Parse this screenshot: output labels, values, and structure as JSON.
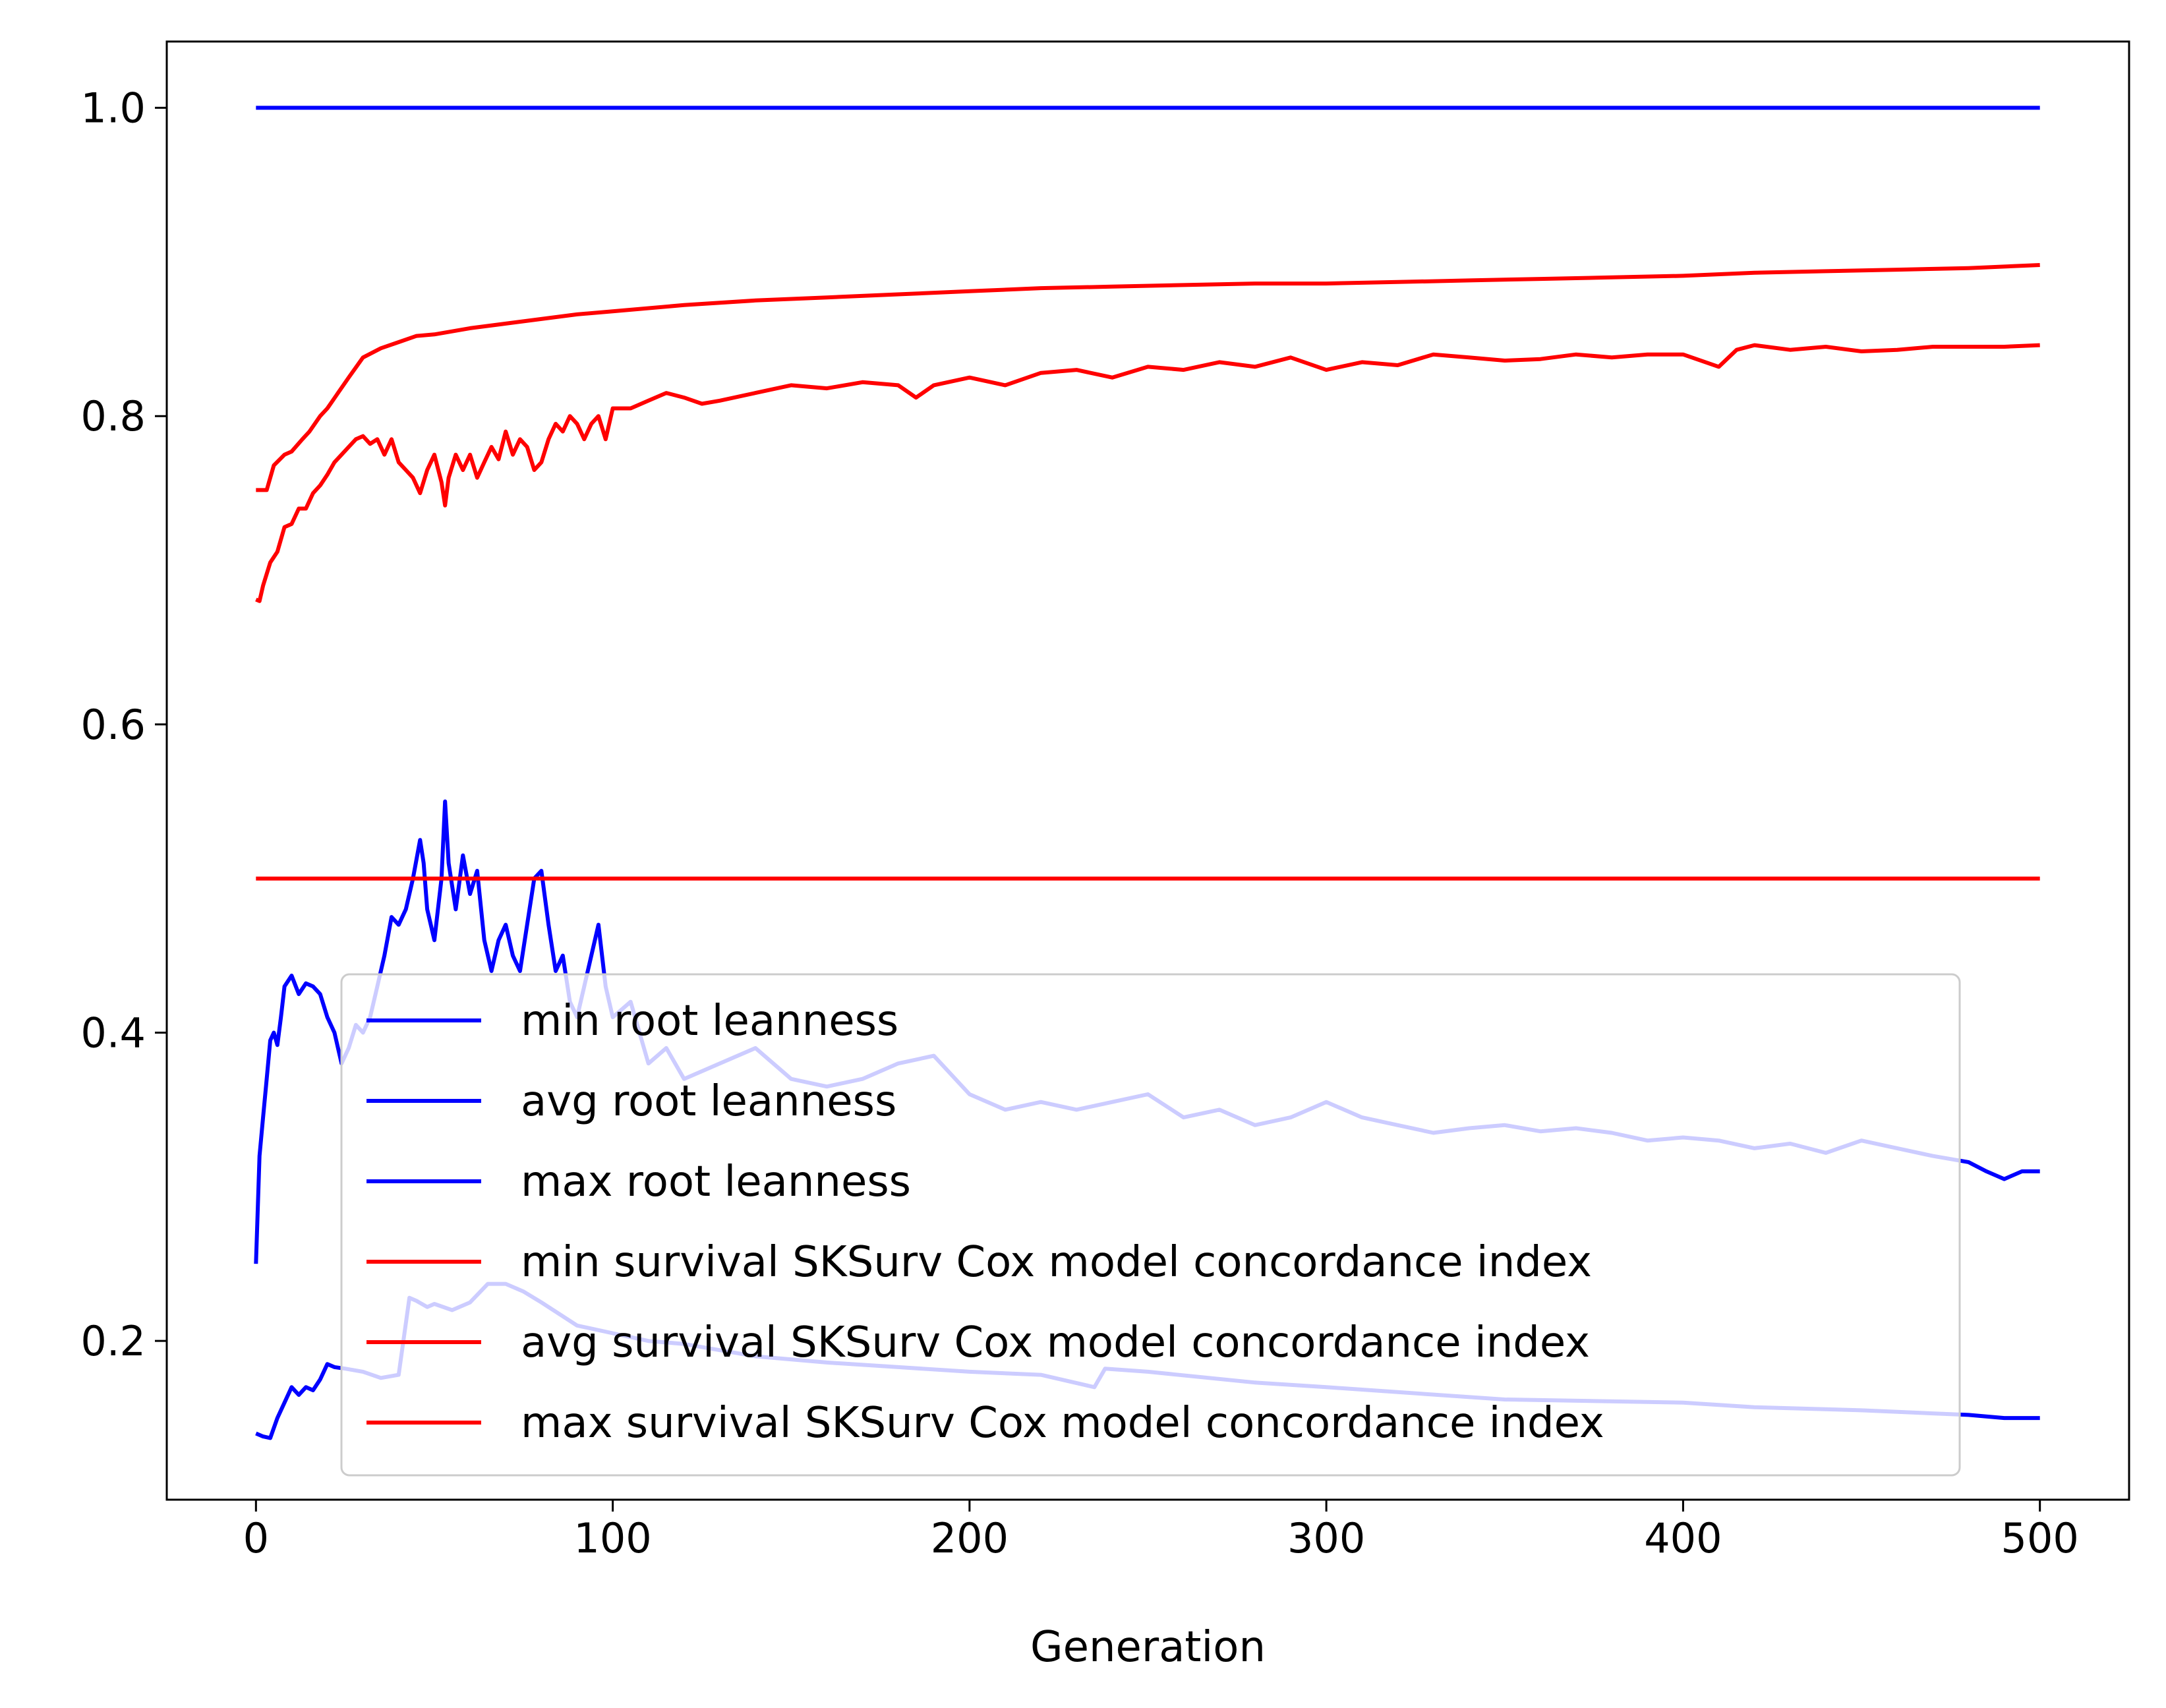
{
  "chart_data": {
    "type": "line",
    "title": "",
    "xlabel": "Generation",
    "ylabel": "",
    "xlim": [
      -25,
      525
    ],
    "ylim": [
      0.097,
      1.043
    ],
    "xticks": [
      0,
      100,
      200,
      300,
      400,
      500
    ],
    "xtick_labels": [
      "0",
      "100",
      "200",
      "300",
      "400",
      "500"
    ],
    "yticks": [
      0.2,
      0.4,
      0.6,
      0.8,
      1.0
    ],
    "ytick_labels": [
      "0.2",
      "0.4",
      "0.6",
      "0.8",
      "1.0"
    ],
    "grid": false,
    "legend": {
      "position": "lower center",
      "framed": true
    },
    "series": [
      {
        "name": "min root leanness",
        "color": "#0000ff",
        "x": [
          0,
          2,
          4,
          6,
          8,
          10,
          12,
          14,
          16,
          18,
          20,
          22,
          25,
          30,
          35,
          40,
          43,
          45,
          48,
          50,
          55,
          60,
          65,
          70,
          75,
          80,
          90,
          100,
          110,
          120,
          140,
          160,
          180,
          200,
          220,
          235,
          238,
          250,
          280,
          300,
          350,
          400,
          420,
          450,
          470,
          480,
          490,
          500
        ],
        "y": [
          0.14,
          0.138,
          0.137,
          0.15,
          0.16,
          0.17,
          0.165,
          0.17,
          0.168,
          0.175,
          0.185,
          0.183,
          0.182,
          0.18,
          0.176,
          0.178,
          0.228,
          0.226,
          0.222,
          0.224,
          0.22,
          0.225,
          0.237,
          0.237,
          0.232,
          0.225,
          0.21,
          0.205,
          0.2,
          0.198,
          0.19,
          0.186,
          0.183,
          0.18,
          0.178,
          0.17,
          0.182,
          0.18,
          0.173,
          0.17,
          0.162,
          0.16,
          0.157,
          0.155,
          0.153,
          0.152,
          0.15,
          0.15
        ]
      },
      {
        "name": "avg root leanness",
        "color": "#0000ff",
        "x": [
          0,
          1,
          2,
          3,
          4,
          5,
          6,
          7,
          8,
          10,
          12,
          14,
          16,
          18,
          20,
          22,
          24,
          26,
          28,
          30,
          32,
          34,
          36,
          38,
          40,
          42,
          44,
          46,
          47,
          48,
          50,
          52,
          53,
          54,
          56,
          58,
          60,
          62,
          64,
          66,
          68,
          70,
          72,
          74,
          76,
          78,
          80,
          82,
          84,
          86,
          88,
          90,
          92,
          94,
          96,
          98,
          100,
          105,
          110,
          115,
          120,
          130,
          140,
          150,
          160,
          170,
          180,
          190,
          200,
          210,
          220,
          230,
          240,
          250,
          260,
          270,
          280,
          290,
          300,
          310,
          320,
          330,
          340,
          350,
          360,
          370,
          380,
          390,
          400,
          410,
          420,
          430,
          440,
          450,
          460,
          470,
          480,
          485,
          490,
          495,
          500
        ],
        "y": [
          0.25,
          0.32,
          0.345,
          0.37,
          0.395,
          0.4,
          0.392,
          0.41,
          0.43,
          0.437,
          0.425,
          0.432,
          0.43,
          0.425,
          0.41,
          0.4,
          0.38,
          0.39,
          0.405,
          0.4,
          0.41,
          0.43,
          0.45,
          0.475,
          0.47,
          0.48,
          0.5,
          0.525,
          0.51,
          0.48,
          0.46,
          0.5,
          0.55,
          0.51,
          0.48,
          0.515,
          0.49,
          0.505,
          0.46,
          0.44,
          0.46,
          0.47,
          0.45,
          0.44,
          0.47,
          0.5,
          0.505,
          0.47,
          0.44,
          0.45,
          0.42,
          0.41,
          0.43,
          0.45,
          0.47,
          0.43,
          0.41,
          0.42,
          0.38,
          0.39,
          0.37,
          0.38,
          0.39,
          0.37,
          0.365,
          0.37,
          0.38,
          0.385,
          0.36,
          0.35,
          0.355,
          0.35,
          0.355,
          0.36,
          0.345,
          0.35,
          0.34,
          0.345,
          0.355,
          0.345,
          0.34,
          0.335,
          0.338,
          0.34,
          0.336,
          0.338,
          0.335,
          0.33,
          0.332,
          0.33,
          0.325,
          0.328,
          0.322,
          0.33,
          0.325,
          0.32,
          0.316,
          0.31,
          0.305,
          0.31,
          0.31
        ]
      },
      {
        "name": "max root leanness",
        "color": "#0000ff",
        "x": [
          0,
          500
        ],
        "y": [
          1.0,
          1.0
        ]
      },
      {
        "name": "min survival SKSurv Cox model concordance index",
        "color": "#ff0000",
        "x": [
          0,
          500
        ],
        "y": [
          0.5,
          0.5
        ]
      },
      {
        "name": "avg survival SKSurv Cox model concordance index",
        "color": "#ff0000",
        "x": [
          0,
          1,
          2,
          4,
          6,
          8,
          10,
          12,
          14,
          16,
          18,
          20,
          22,
          24,
          26,
          28,
          30,
          32,
          34,
          36,
          38,
          40,
          42,
          44,
          46,
          48,
          50,
          52,
          53,
          54,
          56,
          58,
          60,
          62,
          64,
          66,
          68,
          70,
          72,
          74,
          76,
          78,
          80,
          82,
          84,
          86,
          88,
          90,
          92,
          94,
          96,
          98,
          100,
          105,
          110,
          115,
          120,
          125,
          130,
          140,
          150,
          160,
          170,
          180,
          185,
          190,
          200,
          210,
          220,
          230,
          240,
          250,
          260,
          270,
          280,
          290,
          300,
          310,
          320,
          330,
          340,
          350,
          360,
          370,
          380,
          390,
          400,
          410,
          415,
          420,
          430,
          440,
          450,
          460,
          470,
          480,
          490,
          500
        ],
        "y": [
          0.681,
          0.68,
          0.69,
          0.705,
          0.712,
          0.728,
          0.73,
          0.74,
          0.74,
          0.75,
          0.755,
          0.762,
          0.77,
          0.775,
          0.78,
          0.785,
          0.787,
          0.782,
          0.785,
          0.775,
          0.785,
          0.77,
          0.765,
          0.76,
          0.75,
          0.765,
          0.775,
          0.757,
          0.742,
          0.76,
          0.775,
          0.765,
          0.775,
          0.76,
          0.77,
          0.78,
          0.772,
          0.79,
          0.775,
          0.785,
          0.78,
          0.765,
          0.77,
          0.785,
          0.795,
          0.79,
          0.8,
          0.795,
          0.785,
          0.795,
          0.8,
          0.785,
          0.805,
          0.805,
          0.81,
          0.815,
          0.812,
          0.808,
          0.81,
          0.815,
          0.82,
          0.818,
          0.822,
          0.82,
          0.812,
          0.82,
          0.825,
          0.82,
          0.828,
          0.83,
          0.825,
          0.832,
          0.83,
          0.835,
          0.832,
          0.838,
          0.83,
          0.835,
          0.833,
          0.84,
          0.838,
          0.836,
          0.837,
          0.84,
          0.838,
          0.84,
          0.84,
          0.832,
          0.843,
          0.846,
          0.843,
          0.845,
          0.842,
          0.843,
          0.845,
          0.845,
          0.845,
          0.846
        ]
      },
      {
        "name": "max survival SKSurv Cox model concordance index",
        "color": "#ff0000",
        "x": [
          0,
          3,
          5,
          8,
          10,
          13,
          15,
          18,
          20,
          23,
          26,
          30,
          35,
          40,
          45,
          50,
          60,
          70,
          80,
          90,
          100,
          120,
          140,
          160,
          180,
          200,
          220,
          240,
          260,
          280,
          300,
          320,
          340,
          360,
          380,
          400,
          420,
          440,
          460,
          480,
          500
        ],
        "y": [
          0.752,
          0.752,
          0.768,
          0.775,
          0.777,
          0.785,
          0.79,
          0.8,
          0.805,
          0.815,
          0.825,
          0.838,
          0.844,
          0.848,
          0.852,
          0.853,
          0.857,
          0.86,
          0.863,
          0.866,
          0.868,
          0.872,
          0.875,
          0.877,
          0.879,
          0.881,
          0.883,
          0.884,
          0.885,
          0.886,
          0.886,
          0.887,
          0.888,
          0.889,
          0.89,
          0.891,
          0.893,
          0.894,
          0.895,
          0.896,
          0.898
        ]
      }
    ]
  }
}
